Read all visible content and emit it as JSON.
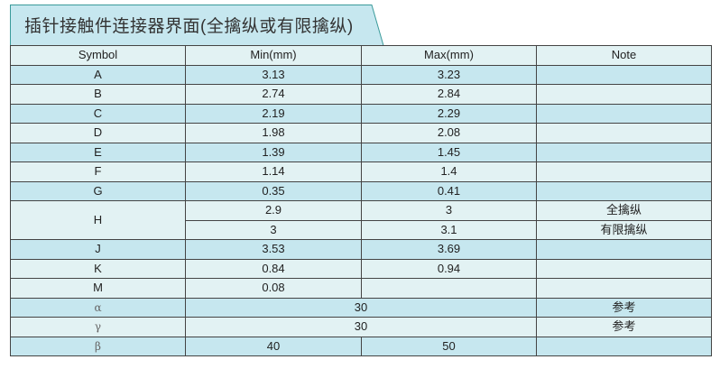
{
  "title": "插针接触件连接器界面(全擒纵或有限擒纵)",
  "colors": {
    "row_blue": "#c6e7ef",
    "row_light": "#e2f2f3",
    "tab_border": "#3a9a9a"
  },
  "headers": [
    "Symbol",
    "Min(mm)",
    "Max(mm)",
    "Note"
  ],
  "rows": [
    {
      "symbol": "A",
      "min": "3.13",
      "max": "3.23",
      "note": ""
    },
    {
      "symbol": "B",
      "min": "2.74",
      "max": "2.84",
      "note": ""
    },
    {
      "symbol": "C",
      "min": "2.19",
      "max": "2.29",
      "note": ""
    },
    {
      "symbol": "D",
      "min": "1.98",
      "max": "2.08",
      "note": ""
    },
    {
      "symbol": "E",
      "min": "1.39",
      "max": "1.45",
      "note": ""
    },
    {
      "symbol": "F",
      "min": "1.14",
      "max": "1.4",
      "note": ""
    },
    {
      "symbol": "G",
      "min": "0.35",
      "max": "0.41",
      "note": ""
    }
  ],
  "h_row": {
    "symbol": "H",
    "sub": [
      {
        "min": "2.9",
        "max": "3",
        "note": "全擒纵"
      },
      {
        "min": "3",
        "max": "3.1",
        "note": "有限擒纵"
      }
    ]
  },
  "rows2": [
    {
      "symbol": "J",
      "min": "3.53",
      "max": "3.69",
      "note": ""
    },
    {
      "symbol": "K",
      "min": "0.84",
      "max": "0.94",
      "note": ""
    },
    {
      "symbol": "M",
      "min": "0.08",
      "max": "",
      "note": ""
    }
  ],
  "angles": [
    {
      "symbol": "α",
      "value": "30",
      "note": "参考"
    },
    {
      "symbol": "γ",
      "value": "30",
      "note": "参考"
    }
  ],
  "beta": {
    "symbol": "β",
    "min": "40",
    "max": "50",
    "note": ""
  }
}
